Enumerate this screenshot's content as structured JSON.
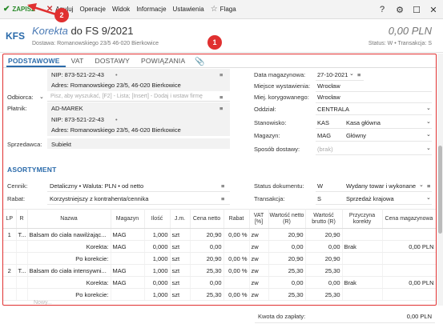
{
  "menu": {
    "save": "ZAPISZ",
    "cancel": "Anuluj",
    "operations": "Operacje",
    "view": "Widok",
    "info": "Informacje",
    "settings": "Ustawienia",
    "flag": "Flaga"
  },
  "window": {
    "help": "?",
    "settings_icon": "⚙",
    "maximize": "☐",
    "close": "✕"
  },
  "doc": {
    "icon": "KFS",
    "type": "Korekta",
    "title_rest": "do FS 9/2021",
    "delivery": "Dostawa: Romanowskiego 23/5 46-020 Bierkowice",
    "amount": "0,00 PLN",
    "status": "Status: W • Transakcja: S"
  },
  "tabs": [
    "PODSTAWOWE",
    "VAT",
    "DOSTAWY",
    "POWIĄZANIA"
  ],
  "left": {
    "nip1": "NIP: 873-521-22-43",
    "addr1": "Adres: Romanowskiego 23/5, 46-020 Bierkowice",
    "odbiorca_label": "Odbiorca:",
    "odbiorca_placeholder": "Pisz, aby wyszukać, [F2] - Lista; [Insert] - Dodaj i wstaw firmę",
    "platnik_label": "Płatnik:",
    "platnik_value": "AD-MAREK",
    "nip2": "NIP: 873-521-22-43",
    "addr2": "Adres: Romanowskiego 23/5, 46-020 Bierkowice",
    "sprzedawca_label": "Sprzedawca:",
    "sprzedawca_value": "Subiekt"
  },
  "right": {
    "data_mag_label": "Data magazynowa:",
    "data_mag_value": "27-10-2021",
    "miejsce_label": "Miejsce wystawienia:",
    "miejsce_value": "Wrocław",
    "miej_kor_label": "Miej. korygowanego:",
    "miej_kor_value": "Wrocław",
    "oddzial_label": "Oddział:",
    "oddzial_value": "CENTRALA",
    "stanowisko_label": "Stanowisko:",
    "stanowisko_code": "KAS",
    "stanowisko_value": "Kasa główna",
    "magazyn_label": "Magazyn:",
    "magazyn_code": "MAG",
    "magazyn_value": "Główny",
    "sposob_label": "Sposób dostawy:",
    "sposob_placeholder": "(brak)"
  },
  "asort": {
    "heading": "ASORTYMENT",
    "cennik_label": "Cennik:",
    "cennik_value": "Detaliczny • Waluta: PLN • od netto",
    "rabat_label": "Rabat:",
    "rabat_value": "Korzystniejszy z kontrahenta/cennika",
    "status_label": "Status dokumentu:",
    "status_code": "W",
    "status_value": "Wydany towar i wykonane",
    "trans_label": "Transakcja:",
    "trans_code": "S",
    "trans_value": "Sprzedaż krajowa"
  },
  "table": {
    "headers": [
      "LP",
      "R",
      "Nazwa",
      "Magazyn",
      "Ilość",
      "J.m.",
      "Cena netto",
      "Rabat",
      "VAT [%]",
      "Wartość netto (R)",
      "Wartość brutto (R)",
      "Przyczyna korekty",
      "Cena magazynowa"
    ],
    "rows": [
      [
        "1",
        "T...",
        "Balsam do ciała nawilżając...",
        "MAG",
        "1,000",
        "szt",
        "20,90",
        "0,00 %",
        "zw",
        "20,90",
        "20,90",
        "",
        ""
      ],
      [
        "",
        "",
        "Korekta:",
        "MAG",
        "0,000",
        "szt",
        "0,00",
        "",
        "zw",
        "0,00",
        "0,00",
        "Brak",
        "0,00 PLN"
      ],
      [
        "",
        "",
        "Po korekcie:",
        "",
        "1,000",
        "szt",
        "20,90",
        "0,00 %",
        "zw",
        "20,90",
        "20,90",
        "",
        ""
      ],
      [
        "2",
        "T...",
        "Balsam do ciała intensywni...",
        "MAG",
        "1,000",
        "szt",
        "25,30",
        "0,00 %",
        "zw",
        "25,30",
        "25,30",
        "",
        ""
      ],
      [
        "",
        "",
        "Korekta:",
        "MAG",
        "0,000",
        "szt",
        "0,00",
        "",
        "zw",
        "0,00",
        "0,00",
        "Brak",
        "0,00 PLN"
      ],
      [
        "",
        "",
        "Po korekcie:",
        "",
        "1,000",
        "szt",
        "25,30",
        "0,00 %",
        "zw",
        "25,30",
        "25,30",
        "",
        ""
      ]
    ],
    "new_row": "Nowy..."
  },
  "footer": {
    "label": "Kwota do zapłaty:",
    "value": "0,00 PLN"
  },
  "badges": {
    "one": "1",
    "two": "2"
  },
  "colors": {
    "accent": "#2a6aaa",
    "save": "#2a8a2a",
    "highlight": "#e03030"
  }
}
